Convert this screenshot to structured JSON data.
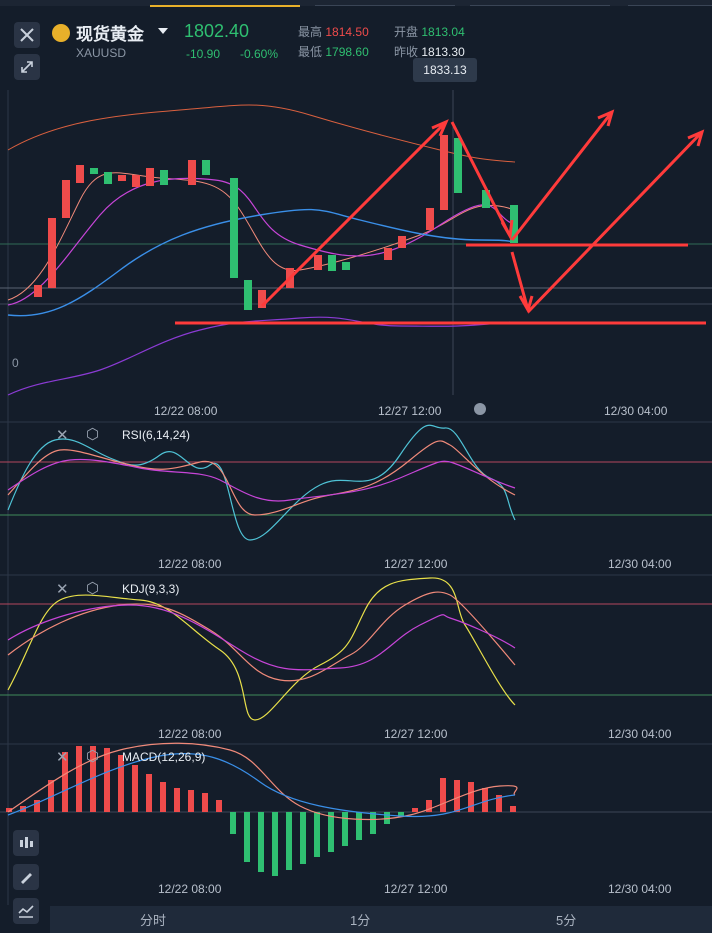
{
  "header": {
    "title": "现货黄金",
    "symbol": "XAUUSD",
    "price": "1802.40",
    "change": "-10.90",
    "change_pct": "-0.60%",
    "high_label": "最高",
    "high_value": "1814.50",
    "open_label": "开盘",
    "open_value": "1813.04",
    "low_label": "最低",
    "low_value": "1798.60",
    "prev_close_label": "昨收",
    "prev_close_value": "1813.30"
  },
  "main_chart": {
    "tooltip_value": "1833.13",
    "zero_label": "0",
    "time_labels": [
      "12/22 08:00",
      "12/27 12:00",
      "12/30 04:00"
    ]
  },
  "rsi": {
    "label": "RSI(6,14,24)",
    "time_labels": [
      "12/22 08:00",
      "12/27 12:00",
      "12/30 04:00"
    ]
  },
  "kdj": {
    "label": "KDJ(9,3,3)",
    "time_labels": [
      "12/22 08:00",
      "12/27 12:00",
      "12/30 04:00"
    ]
  },
  "macd": {
    "label": "MACD(12,26,9)",
    "time_labels": [
      "12/22 08:00",
      "12/27 12:00",
      "12/30 04:00"
    ]
  },
  "footer": {
    "periods": [
      "分时",
      "1分",
      "5分"
    ]
  },
  "colors": {
    "up": "#ef4b4b",
    "down": "#2fbf71",
    "annotation": "#ff3b3b",
    "accent": "#e8b02a"
  },
  "icons": [
    "close-icon",
    "collapse-icon",
    "gold-coin-icon",
    "chevron-down-icon",
    "settings-icon",
    "draw-icon",
    "indicator-icon",
    "candlestick-icon"
  ]
}
